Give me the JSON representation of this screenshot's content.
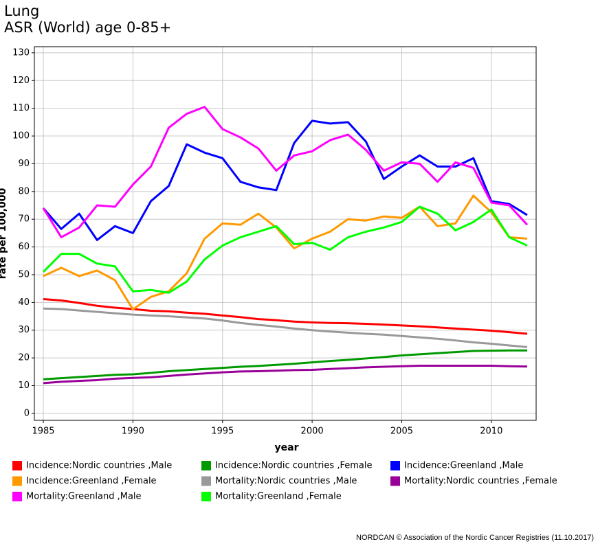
{
  "chart_data": {
    "type": "line",
    "title": "Lung",
    "subtitle": "ASR (World) age 0-85+",
    "x_label": "year",
    "y_label": "rate per 100,000",
    "footer": "NORDCAN © Association of the Nordic Cancer Registries (11.10.2017)",
    "x": [
      1985,
      1986,
      1987,
      1988,
      1989,
      1990,
      1991,
      1992,
      1993,
      1994,
      1995,
      1996,
      1997,
      1998,
      1999,
      2000,
      2001,
      2002,
      2003,
      2004,
      2005,
      2006,
      2007,
      2008,
      2009,
      2010,
      2011,
      2012
    ],
    "xlim": [
      1984.5,
      2012.5
    ],
    "xticks": [
      1985,
      1990,
      1995,
      2000,
      2005,
      2010
    ],
    "ylim": [
      -2.5,
      132.2
    ],
    "yticks": [
      0,
      10,
      20,
      30,
      40,
      50,
      60,
      70,
      80,
      90,
      100,
      110,
      120,
      130
    ],
    "grid": true,
    "series": [
      {
        "name": "Incidence:Nordic countries ,Male",
        "color": "#ff0000",
        "values": [
          41.2,
          40.7,
          39.8,
          38.8,
          38.1,
          37.6,
          37.0,
          36.8,
          36.3,
          35.9,
          35.3,
          34.7,
          34.0,
          33.6,
          33.1,
          32.8,
          32.6,
          32.5,
          32.3,
          32.0,
          31.7,
          31.4,
          31.0,
          30.6,
          30.2,
          29.8,
          29.3,
          28.7
        ]
      },
      {
        "name": "Incidence:Nordic countries ,Female",
        "color": "#009900",
        "values": [
          12.3,
          12.7,
          13.1,
          13.5,
          13.9,
          14.1,
          14.6,
          15.2,
          15.6,
          16.0,
          16.4,
          16.8,
          17.1,
          17.5,
          17.9,
          18.4,
          18.9,
          19.3,
          19.8,
          20.3,
          20.9,
          21.3,
          21.7,
          22.1,
          22.5,
          22.6,
          22.7,
          22.7
        ]
      },
      {
        "name": "Incidence:Greenland ,Male",
        "color": "#0000ff",
        "values": [
          74,
          66.5,
          72,
          62.5,
          67.5,
          65,
          76.5,
          82,
          97,
          94,
          92,
          83.5,
          81.5,
          80.5,
          97.5,
          105.5,
          104.5,
          105,
          98,
          84.5,
          89,
          93,
          89,
          89,
          92,
          76.5,
          75.5,
          71.5
        ]
      },
      {
        "name": "Incidence:Greenland ,Female",
        "color": "#ff9900",
        "values": [
          49.5,
          52.5,
          49.5,
          51.5,
          48,
          37.5,
          42,
          44,
          50.5,
          63,
          68.5,
          68,
          72,
          67,
          59.5,
          63,
          65.5,
          70,
          69.5,
          71,
          70.5,
          74.5,
          67.5,
          68.5,
          78.5,
          72.5,
          63.5,
          63
        ]
      },
      {
        "name": "Mortality:Nordic countries ,Male",
        "color": "#999999",
        "values": [
          37.8,
          37.6,
          37.1,
          36.6,
          36.1,
          35.6,
          35.3,
          35.0,
          34.6,
          34.2,
          33.5,
          32.6,
          31.9,
          31.3,
          30.6,
          30.0,
          29.5,
          29.1,
          28.7,
          28.4,
          27.9,
          27.4,
          26.9,
          26.3,
          25.6,
          25.1,
          24.5,
          23.9
        ]
      },
      {
        "name": "Mortality:Nordic countries ,Female",
        "color": "#990099",
        "values": [
          10.9,
          11.4,
          11.7,
          12.0,
          12.5,
          12.8,
          13.0,
          13.5,
          14.0,
          14.4,
          14.8,
          15.1,
          15.2,
          15.4,
          15.6,
          15.7,
          16.0,
          16.3,
          16.6,
          16.8,
          17.0,
          17.2,
          17.2,
          17.2,
          17.2,
          17.2,
          17.0,
          16.9
        ]
      },
      {
        "name": "Mortality:Greenland ,Male",
        "color": "#ff00ff",
        "values": [
          74,
          63.5,
          67,
          75,
          74.5,
          82.5,
          89,
          103,
          108,
          110.5,
          102.5,
          99.5,
          95.5,
          87.5,
          93,
          94.5,
          98.5,
          100.5,
          95,
          87.5,
          90.5,
          90,
          83.5,
          90.5,
          88.5,
          76,
          75,
          68
        ]
      },
      {
        "name": "Mortality:Greenland ,Female",
        "color": "#00ff00",
        "values": [
          51,
          57.5,
          57.5,
          54,
          53,
          44,
          44.5,
          43.5,
          47.5,
          55.5,
          60.5,
          63.5,
          65.5,
          67.5,
          61,
          61.5,
          59,
          63.5,
          65.5,
          67,
          69,
          74.5,
          72,
          66,
          69,
          73.5,
          63.5,
          60.5
        ]
      }
    ]
  }
}
